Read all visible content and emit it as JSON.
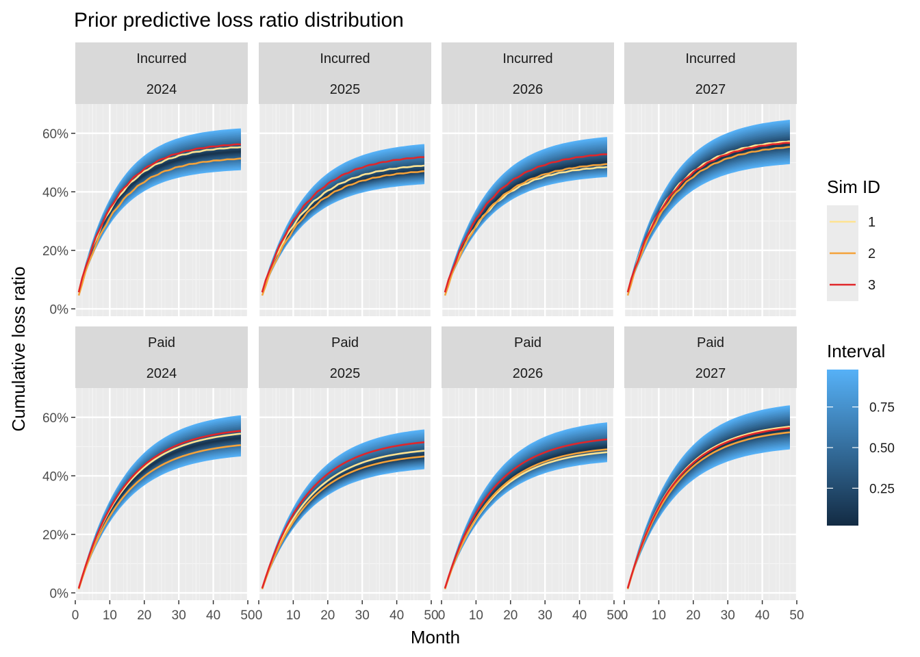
{
  "chart_data": {
    "type": "line",
    "title": "Prior predictive loss ratio distribution",
    "xlabel": "Month",
    "ylabel": "Cumulative loss ratio",
    "xlim": [
      0,
      50
    ],
    "ylim": [
      0,
      0.7
    ],
    "x_ticks": [
      0,
      10,
      20,
      30,
      40,
      50
    ],
    "x_tick_labels": [
      "0",
      "10",
      "20",
      "30",
      "40",
      "50"
    ],
    "y_ticks": [
      0,
      0.2,
      0.4,
      0.6
    ],
    "y_tick_labels": [
      "0%",
      "20%",
      "40%",
      "60%"
    ],
    "grid": true,
    "facet_rows": [
      "Incurred",
      "Paid"
    ],
    "facet_cols": [
      "2024",
      "2025",
      "2026",
      "2027"
    ],
    "months": [
      1,
      48
    ],
    "legend_sim": {
      "title": "Sim ID",
      "items": [
        {
          "label": "1",
          "color": "#fee391"
        },
        {
          "label": "2",
          "color": "#f4a23a"
        },
        {
          "label": "3",
          "color": "#e0262a"
        }
      ]
    },
    "legend_interval": {
      "title": "Interval",
      "ticks": [
        0.25,
        0.5,
        0.75
      ],
      "tick_labels": [
        "0.25",
        "0.50",
        "0.75"
      ],
      "color_low": "#132b43",
      "color_high": "#56b1f7"
    },
    "panels": [
      {
        "measure": "Incurred",
        "year": "2024",
        "median_final": 0.545,
        "low_final": 0.48,
        "high_final": 0.625,
        "rate": 0.09,
        "sims": [
          0.56,
          0.52,
          0.57
        ]
      },
      {
        "measure": "Incurred",
        "year": "2025",
        "median_final": 0.48,
        "low_final": 0.435,
        "high_final": 0.575,
        "rate": 0.08,
        "sims": [
          0.5,
          0.48,
          0.53
        ]
      },
      {
        "measure": "Incurred",
        "year": "2026",
        "median_final": 0.51,
        "low_final": 0.46,
        "high_final": 0.6,
        "rate": 0.08,
        "sims": [
          0.495,
          0.505,
          0.54
        ]
      },
      {
        "measure": "Incurred",
        "year": "2027",
        "median_final": 0.575,
        "low_final": 0.505,
        "high_final": 0.66,
        "rate": 0.08,
        "sims": [
          0.585,
          0.565,
          0.58
        ]
      },
      {
        "measure": "Paid",
        "year": "2024",
        "median_final": 0.545,
        "low_final": 0.48,
        "high_final": 0.625,
        "rate": 0.075,
        "sims": [
          0.56,
          0.52,
          0.57
        ]
      },
      {
        "measure": "Paid",
        "year": "2025",
        "median_final": 0.48,
        "low_final": 0.435,
        "high_final": 0.575,
        "rate": 0.075,
        "sims": [
          0.5,
          0.48,
          0.53
        ]
      },
      {
        "measure": "Paid",
        "year": "2026",
        "median_final": 0.51,
        "low_final": 0.46,
        "high_final": 0.6,
        "rate": 0.075,
        "sims": [
          0.495,
          0.505,
          0.54
        ]
      },
      {
        "measure": "Paid",
        "year": "2027",
        "median_final": 0.575,
        "low_final": 0.505,
        "high_final": 0.66,
        "rate": 0.075,
        "sims": [
          0.585,
          0.565,
          0.58
        ]
      }
    ]
  }
}
